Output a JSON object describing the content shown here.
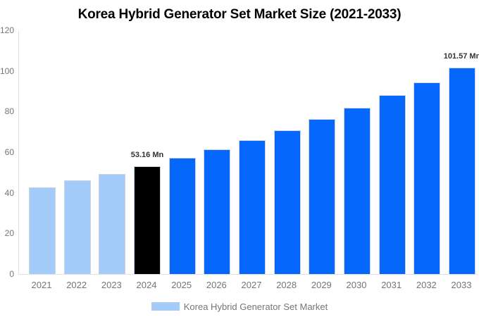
{
  "chart_data": {
    "type": "bar",
    "title": "Korea Hybrid Generator Set Market Size (2021-2033)",
    "categories": [
      "2021",
      "2022",
      "2023",
      "2024",
      "2025",
      "2026",
      "2027",
      "2028",
      "2029",
      "2030",
      "2031",
      "2032",
      "2033"
    ],
    "values": [
      42.8,
      46.0,
      49.4,
      53.16,
      57.1,
      61.4,
      66.0,
      70.9,
      76.2,
      81.9,
      88.0,
      94.5,
      101.57
    ],
    "unit": "Mn",
    "ylim": [
      0,
      120
    ],
    "yticks": [
      0,
      20,
      40,
      60,
      80,
      100,
      120
    ],
    "grid": false,
    "legend_position": "bottom",
    "legend": [
      {
        "label": "Korea Hybrid Generator Set Market",
        "swatch_color": "#a3ccfa"
      }
    ],
    "bar_color_roles": [
      "historical",
      "historical",
      "historical",
      "current",
      "forecast",
      "forecast",
      "forecast",
      "forecast",
      "forecast",
      "forecast",
      "forecast",
      "forecast",
      "forecast"
    ],
    "colors": {
      "historical": "#a3ccfa",
      "current": "#000000",
      "forecast": "#0667fd"
    },
    "data_labels": [
      {
        "index": 3,
        "text": "53.16 Mn"
      },
      {
        "index": 12,
        "text": "101.57 Mn"
      }
    ],
    "axis_text_color": "#757575",
    "data_label_color": "#333333"
  }
}
